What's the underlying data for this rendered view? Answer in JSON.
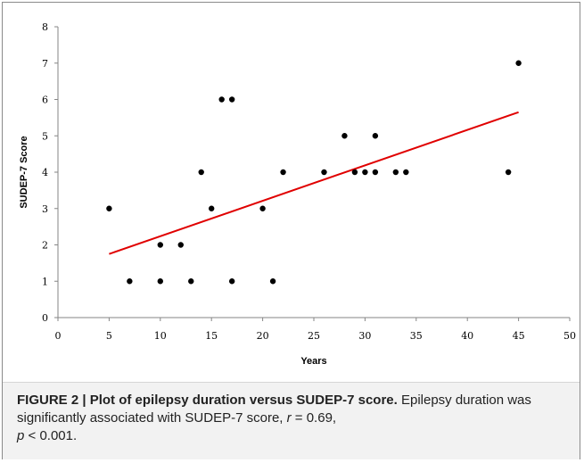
{
  "chart_data": {
    "type": "scatter",
    "title": "",
    "xlabel": "Years",
    "ylabel": "SUDEP-7 Score",
    "xlim": [
      0,
      50
    ],
    "ylim": [
      0,
      8
    ],
    "xticks": [
      "0",
      "5",
      "10",
      "15",
      "20",
      "25",
      "30",
      "35",
      "40",
      "45",
      "50"
    ],
    "yticks": [
      "0",
      "1",
      "2",
      "3",
      "4",
      "5",
      "6",
      "7",
      "8"
    ],
    "grid": false,
    "legend": "none",
    "marker_color": "#000000",
    "trend_color": "#e00000",
    "points": [
      {
        "x": 5,
        "y": 3
      },
      {
        "x": 7,
        "y": 1
      },
      {
        "x": 10,
        "y": 2
      },
      {
        "x": 10,
        "y": 1
      },
      {
        "x": 12,
        "y": 2
      },
      {
        "x": 13,
        "y": 1
      },
      {
        "x": 14,
        "y": 4
      },
      {
        "x": 15,
        "y": 3
      },
      {
        "x": 16,
        "y": 6
      },
      {
        "x": 17,
        "y": 6
      },
      {
        "x": 17,
        "y": 1
      },
      {
        "x": 20,
        "y": 3
      },
      {
        "x": 21,
        "y": 1
      },
      {
        "x": 22,
        "y": 4
      },
      {
        "x": 26,
        "y": 4
      },
      {
        "x": 28,
        "y": 5
      },
      {
        "x": 29,
        "y": 4
      },
      {
        "x": 30,
        "y": 4
      },
      {
        "x": 31,
        "y": 5
      },
      {
        "x": 31,
        "y": 4
      },
      {
        "x": 33,
        "y": 4
      },
      {
        "x": 34,
        "y": 4
      },
      {
        "x": 44,
        "y": 4
      },
      {
        "x": 45,
        "y": 7
      }
    ],
    "trendline": {
      "x": [
        5,
        45
      ],
      "y": [
        1.75,
        5.65
      ]
    }
  },
  "caption": {
    "lead": "FIGURE 2 | Plot of epilepsy duration versus SUDEP-7 score.",
    "body_pre": " Epilepsy duration was significantly associated with SUDEP-7 score, ",
    "r_symbol": "r",
    "r_value": " = 0.69,",
    "p_symbol": "p",
    "p_value": " < 0.001."
  }
}
